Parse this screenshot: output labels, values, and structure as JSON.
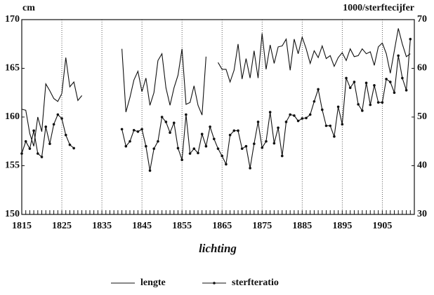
{
  "chart_data": {
    "type": "line",
    "y_label": "cm",
    "y2_label": "1000/sterftecijfer",
    "x_label": "lichting",
    "x": [
      1815,
      1816,
      1817,
      1818,
      1819,
      1820,
      1821,
      1822,
      1823,
      1824,
      1825,
      1826,
      1827,
      1828,
      1829,
      1830,
      1831,
      1832,
      1833,
      1834,
      1835,
      1836,
      1837,
      1838,
      1839,
      1840,
      1841,
      1842,
      1843,
      1844,
      1845,
      1846,
      1847,
      1848,
      1849,
      1850,
      1851,
      1852,
      1853,
      1854,
      1855,
      1856,
      1857,
      1858,
      1859,
      1860,
      1861,
      1862,
      1863,
      1864,
      1865,
      1866,
      1867,
      1868,
      1869,
      1870,
      1871,
      1872,
      1873,
      1874,
      1875,
      1876,
      1877,
      1878,
      1879,
      1880,
      1881,
      1882,
      1883,
      1884,
      1885,
      1886,
      1887,
      1888,
      1889,
      1890,
      1891,
      1892,
      1893,
      1894,
      1895,
      1896,
      1897,
      1898,
      1899,
      1900,
      1901,
      1902,
      1903,
      1904,
      1905,
      1906,
      1907,
      1908,
      1909,
      1910,
      1911,
      1912
    ],
    "xlim": [
      1815,
      1913
    ],
    "xticks": [
      1815,
      1825,
      1835,
      1845,
      1855,
      1865,
      1875,
      1885,
      1895,
      1905
    ],
    "ylim": [
      150,
      170
    ],
    "yticks": [
      150,
      155,
      160,
      165,
      170
    ],
    "y2lim": [
      30,
      70
    ],
    "y2ticks": [
      30,
      40,
      50,
      60,
      70
    ],
    "grid": true,
    "series": [
      {
        "name": "lengte",
        "color": "#111111",
        "axis": "y",
        "markers": false,
        "values": [
          160.8,
          160.7,
          158.3,
          157.0,
          160.0,
          158.5,
          163.4,
          162.7,
          161.9,
          161.6,
          162.4,
          166.1,
          163.1,
          163.6,
          161.7,
          162.2,
          null,
          null,
          null,
          null,
          null,
          null,
          null,
          null,
          null,
          167.0,
          160.5,
          162.0,
          163.8,
          164.7,
          162.6,
          164.0,
          161.2,
          162.5,
          165.8,
          166.5,
          163.0,
          161.2,
          163.0,
          164.3,
          167.0,
          161.3,
          161.5,
          163.2,
          161.2,
          160.2,
          166.2,
          null,
          null,
          165.6,
          164.9,
          164.9,
          163.6,
          164.8,
          167.5,
          163.9,
          166.0,
          164.0,
          166.8,
          164.0,
          168.6,
          164.9,
          167.4,
          165.5,
          167.2,
          167.3,
          168.0,
          164.8,
          168.0,
          166.5,
          168.2,
          167.0,
          165.5,
          166.8,
          166.1,
          167.3,
          166.0,
          166.3,
          165.2,
          166.1,
          166.6,
          165.8,
          167.0,
          166.2,
          166.3,
          167.0,
          166.5,
          166.7,
          165.3,
          167.2,
          167.6,
          166.5,
          164.5,
          166.8,
          169.1,
          167.5,
          166.2,
          166.5
        ]
      },
      {
        "name": "sterfteratio",
        "color": "#111111",
        "axis": "y2",
        "markers": true,
        "values": [
          42.5,
          45.0,
          43.5,
          47.2,
          42.5,
          41.8,
          48.0,
          44.5,
          48.5,
          50.5,
          49.7,
          46.3,
          44.3,
          43.6,
          null,
          null,
          null,
          null,
          null,
          null,
          null,
          null,
          null,
          null,
          null,
          47.5,
          44.0,
          45.0,
          47.3,
          47.0,
          47.5,
          44.0,
          39.0,
          43.5,
          45.0,
          50.0,
          49.0,
          46.8,
          48.8,
          43.6,
          41.2,
          50.5,
          42.5,
          43.5,
          42.6,
          46.5,
          44.0,
          48.0,
          45.5,
          43.5,
          42.0,
          40.3,
          46.3,
          47.2,
          47.2,
          43.5,
          44.0,
          39.5,
          44.5,
          49.0,
          43.7,
          45.0,
          51.0,
          44.6,
          47.8,
          42.0,
          49.0,
          50.5,
          50.3,
          49.2,
          49.7,
          49.8,
          50.5,
          53.2,
          55.7,
          51.5,
          48.2,
          48.2,
          46.0,
          52.1,
          48.5,
          58.0,
          56.0,
          57.2,
          52.6,
          51.3,
          57.0,
          52.5,
          56.5,
          53.0,
          53.0,
          57.8,
          57.2,
          55.0,
          62.6,
          58.0,
          55.5,
          66.0
        ]
      }
    ]
  }
}
